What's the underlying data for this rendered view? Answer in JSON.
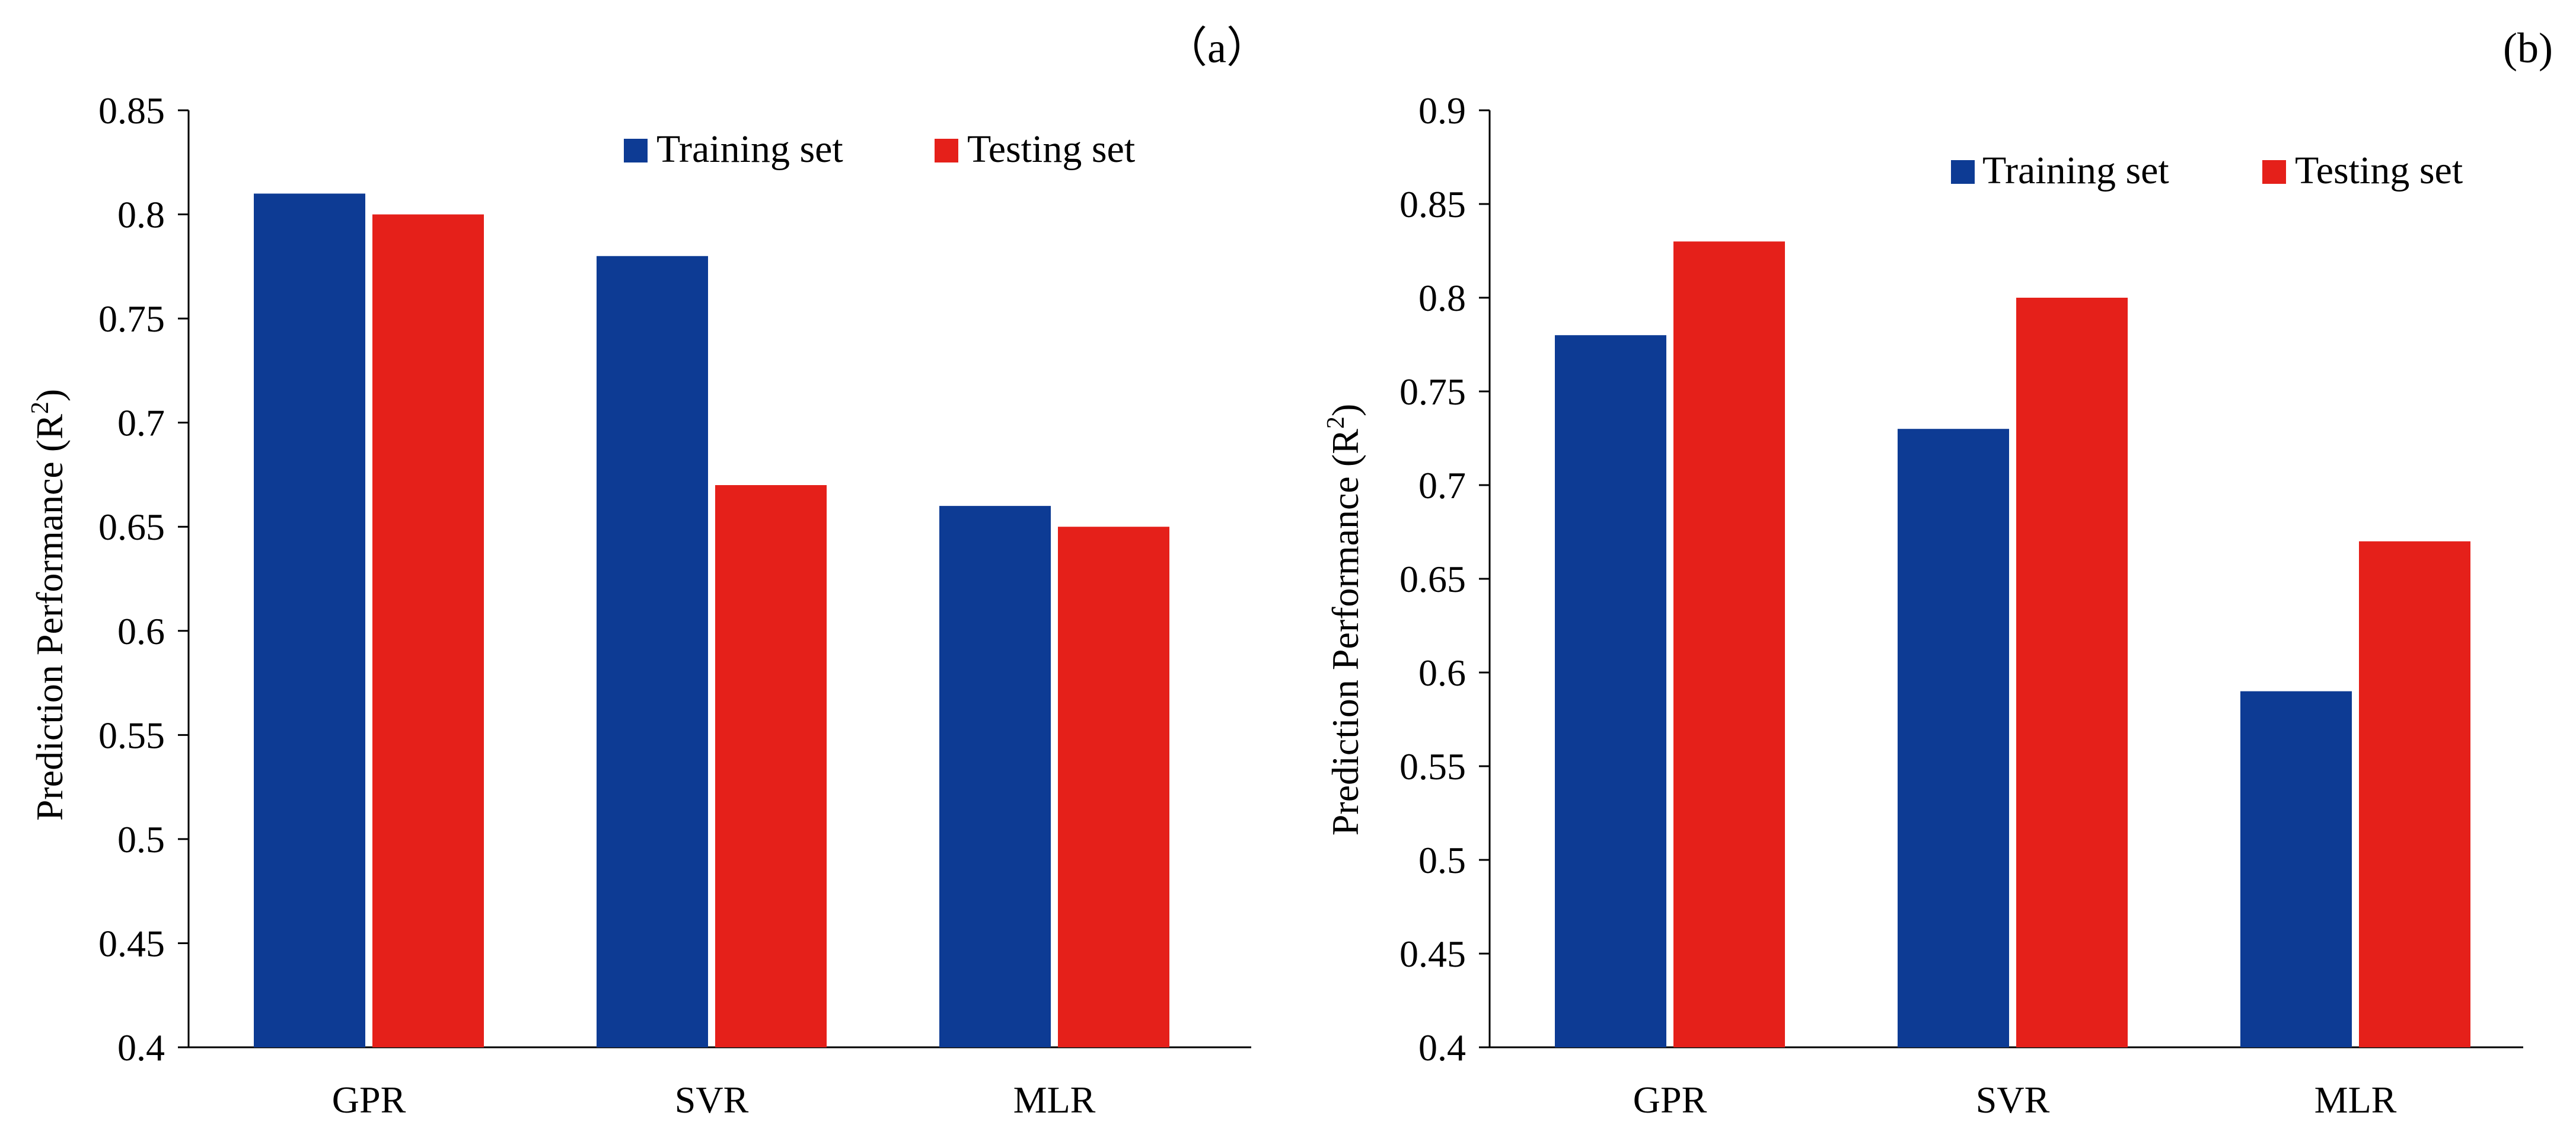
{
  "colors": {
    "training": "#0d3b94",
    "testing": "#e5201a"
  },
  "chart_data": [
    {
      "type": "bar",
      "panel_label": "（a）",
      "title": "",
      "xlabel": "",
      "ylabel": "Prediction Performance (R",
      "ylabel_sup": "2",
      "ylabel_close": ")",
      "categories": [
        "GPR",
        "SVR",
        "MLR"
      ],
      "series": [
        {
          "name": "Training set",
          "values": [
            0.81,
            0.78,
            0.66
          ]
        },
        {
          "name": "Testing set",
          "values": [
            0.8,
            0.67,
            0.65
          ]
        }
      ],
      "ylim": [
        0.4,
        0.85
      ],
      "yticks": [
        "0.4",
        "0.45",
        "0.5",
        "0.55",
        "0.6",
        "0.65",
        "0.7",
        "0.75",
        "0.8",
        "0.85"
      ],
      "grid": false,
      "legend": "top-right"
    },
    {
      "type": "bar",
      "panel_label": "(b)",
      "title": "",
      "xlabel": "",
      "ylabel": "Prediction Performance (R",
      "ylabel_sup": "2",
      "ylabel_close": ")",
      "categories": [
        "GPR",
        "SVR",
        "MLR"
      ],
      "series": [
        {
          "name": "Training set",
          "values": [
            0.78,
            0.73,
            0.59
          ]
        },
        {
          "name": "Testing set",
          "values": [
            0.83,
            0.8,
            0.67
          ]
        }
      ],
      "ylim": [
        0.4,
        0.9
      ],
      "yticks": [
        "0.4",
        "0.45",
        "0.5",
        "0.55",
        "0.6",
        "0.65",
        "0.7",
        "0.75",
        "0.8",
        "0.85",
        "0.9"
      ],
      "grid": false,
      "legend": "top-right"
    }
  ]
}
